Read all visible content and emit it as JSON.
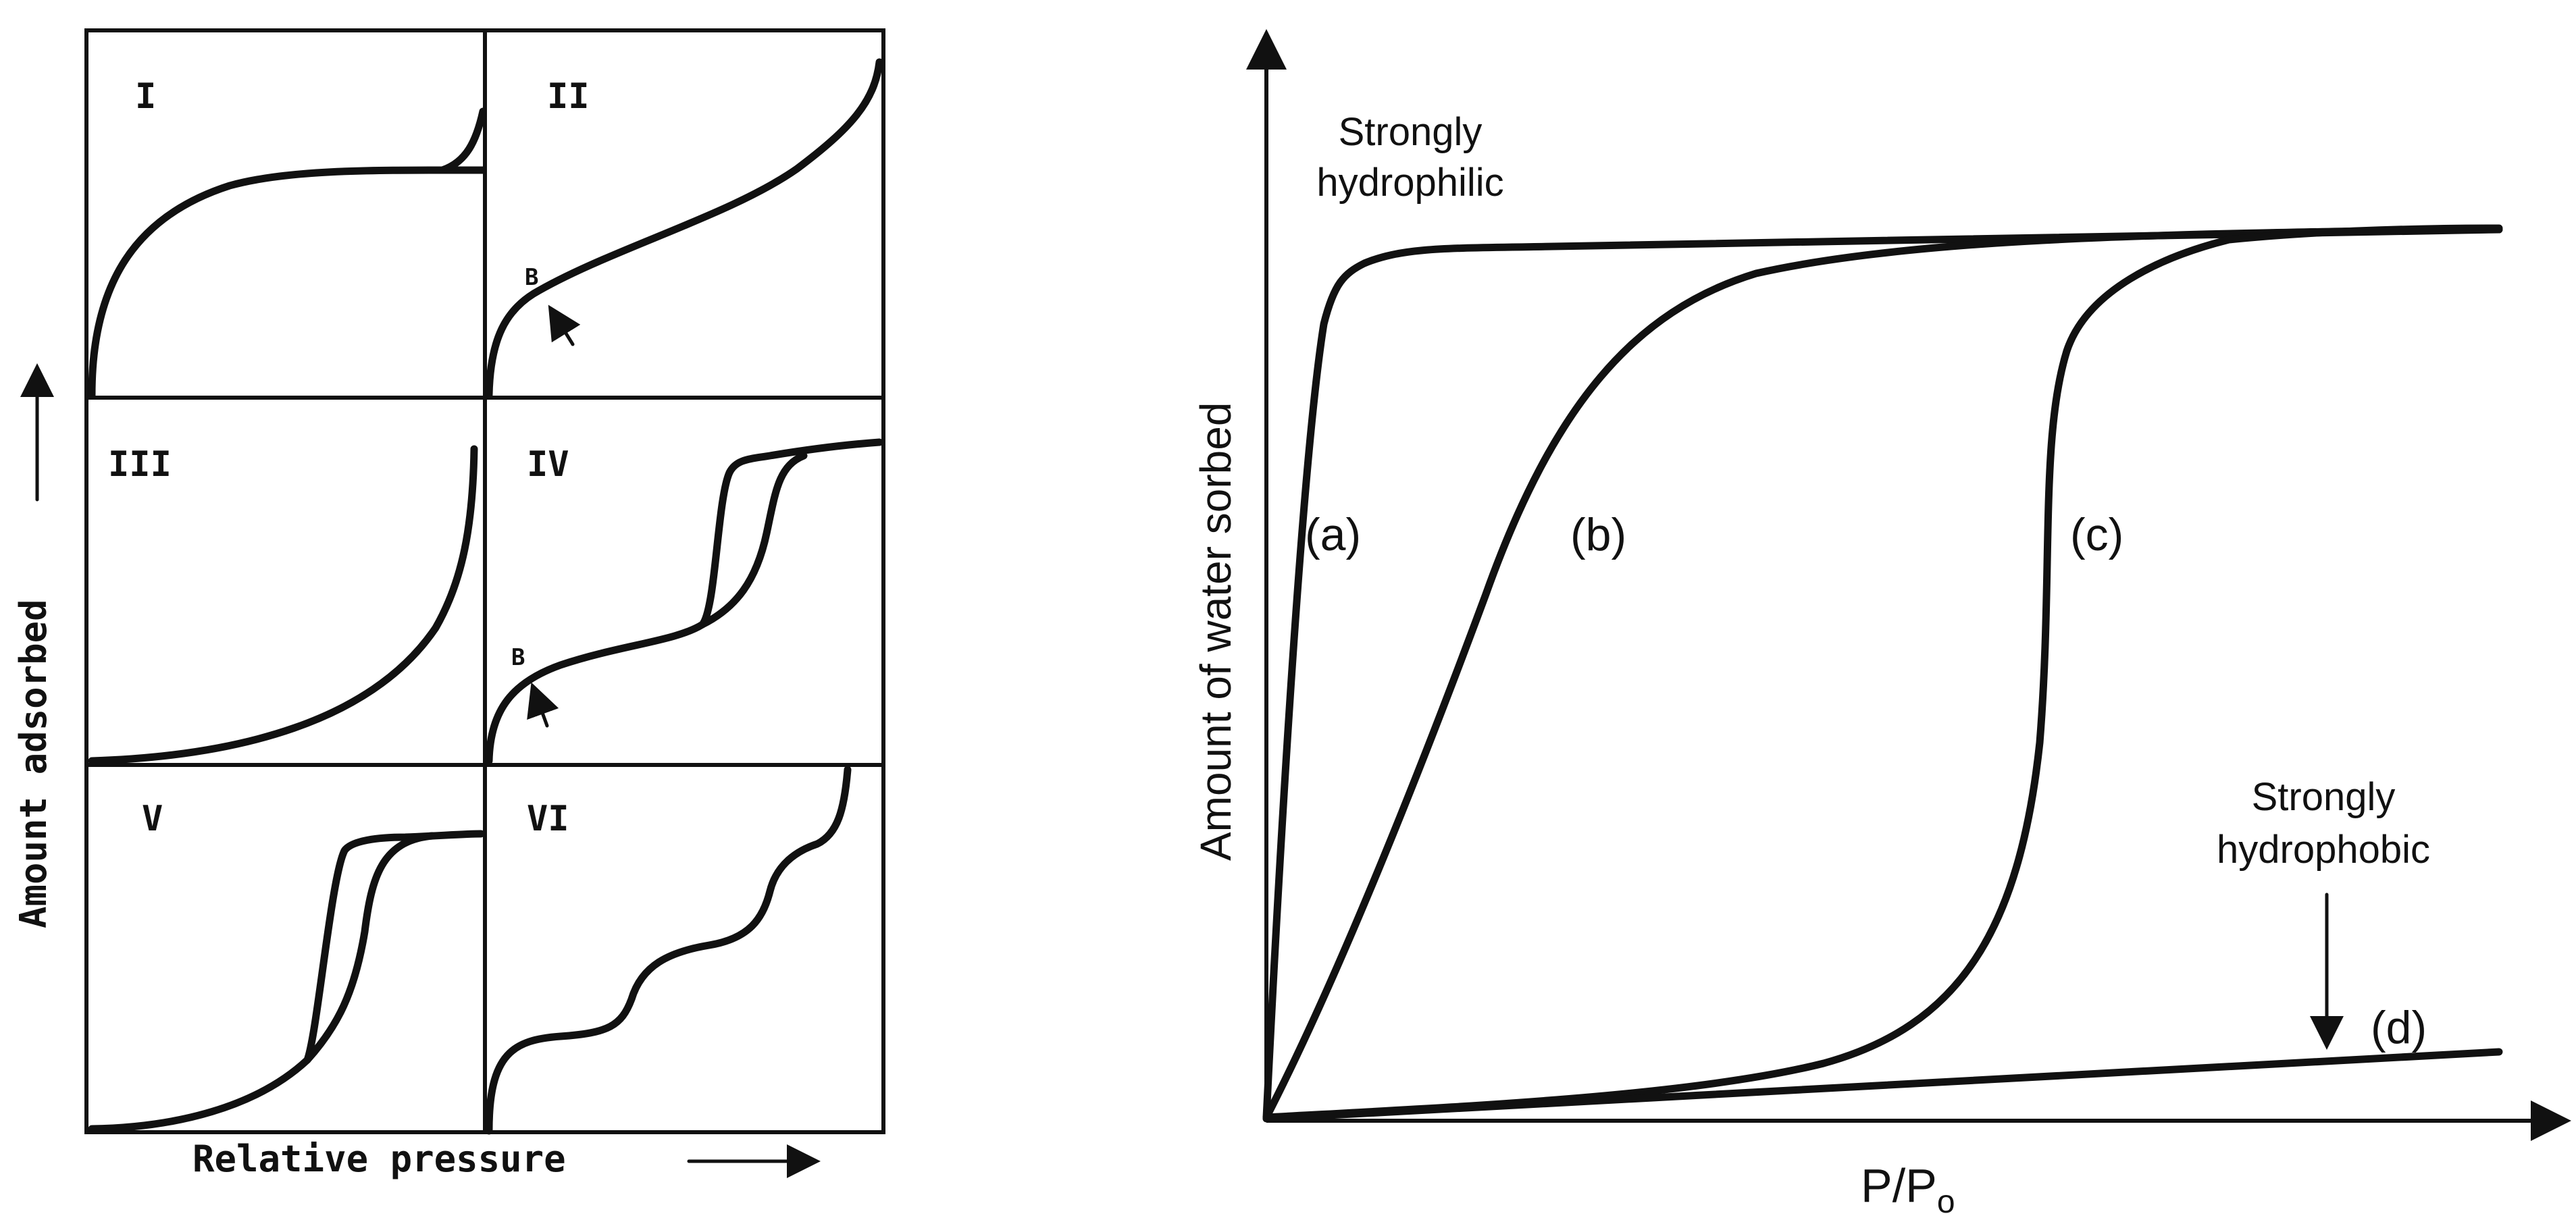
{
  "chart_data": [
    {
      "type": "line",
      "xlabel": "Relative pressure",
      "ylabel": "Amount adsorbed",
      "panels": [
        {
          "label": "I"
        },
        {
          "label": "II",
          "annotation": "B"
        },
        {
          "label": "III"
        },
        {
          "label": "IV",
          "annotation": "B"
        },
        {
          "label": "V"
        },
        {
          "label": "VI"
        }
      ]
    },
    {
      "type": "line",
      "xlabel": "P/Po",
      "ylabel": "Amount of water sorbed",
      "series": [
        {
          "name": "(a)"
        },
        {
          "name": "(b)"
        },
        {
          "name": "(c)"
        },
        {
          "name": "(d)"
        }
      ],
      "annotations": [
        {
          "text": [
            "Strongly",
            "hydrophilic"
          ]
        },
        {
          "text": [
            "Strongly",
            "hydrophobic"
          ]
        }
      ]
    }
  ]
}
